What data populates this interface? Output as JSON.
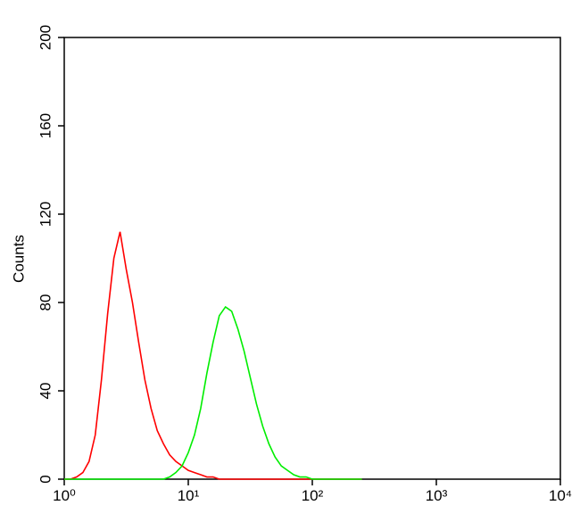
{
  "chart_data": {
    "type": "line",
    "ylabel": "Counts",
    "xscale": "log",
    "xlim": [
      1,
      10000
    ],
    "xticks": [
      {
        "value": 1,
        "label": "10⁰"
      },
      {
        "value": 10,
        "label": "10¹"
      },
      {
        "value": 100,
        "label": "10²"
      },
      {
        "value": 1000,
        "label": "10³"
      },
      {
        "value": 10000,
        "label": "10⁴"
      }
    ],
    "ylim": [
      0,
      200
    ],
    "yticks": [
      0,
      40,
      80,
      120,
      160,
      200
    ],
    "x": [
      1,
      1.122,
      1.259,
      1.413,
      1.585,
      1.778,
      1.995,
      2.239,
      2.512,
      2.818,
      3.162,
      3.548,
      3.981,
      4.467,
      5.012,
      5.623,
      6.31,
      7.079,
      7.943,
      8.913,
      10,
      11.22,
      12.59,
      14.13,
      15.85,
      17.78,
      19.95,
      22.39,
      25.12,
      28.18,
      31.62,
      35.48,
      39.81,
      44.67,
      50.12,
      56.23,
      63.1,
      70.79,
      79.43,
      89.13,
      100,
      112.2,
      125.9,
      141.3,
      158.5,
      177.8,
      199.5,
      223.9,
      251.2
    ],
    "series": [
      {
        "color": "#ff0000",
        "values": [
          0,
          0,
          1,
          3,
          8,
          20,
          45,
          75,
          100,
          112,
          95,
          80,
          62,
          45,
          32,
          22,
          16,
          11,
          8,
          6,
          4,
          3,
          2,
          1,
          1,
          0,
          0,
          0,
          0,
          0,
          0,
          0,
          0,
          0,
          0,
          0,
          0,
          0,
          0,
          0,
          0,
          0,
          0,
          0,
          0,
          0,
          0,
          0,
          0
        ]
      },
      {
        "color": "#00ee00",
        "values": [
          0,
          0,
          0,
          0,
          0,
          0,
          0,
          0,
          0,
          0,
          0,
          0,
          0,
          0,
          0,
          0,
          0,
          1,
          3,
          6,
          12,
          20,
          32,
          48,
          62,
          74,
          78,
          76,
          68,
          58,
          46,
          34,
          24,
          16,
          10,
          6,
          4,
          2,
          1,
          1,
          0,
          0,
          0,
          0,
          0,
          0,
          0,
          0,
          0
        ]
      }
    ]
  }
}
